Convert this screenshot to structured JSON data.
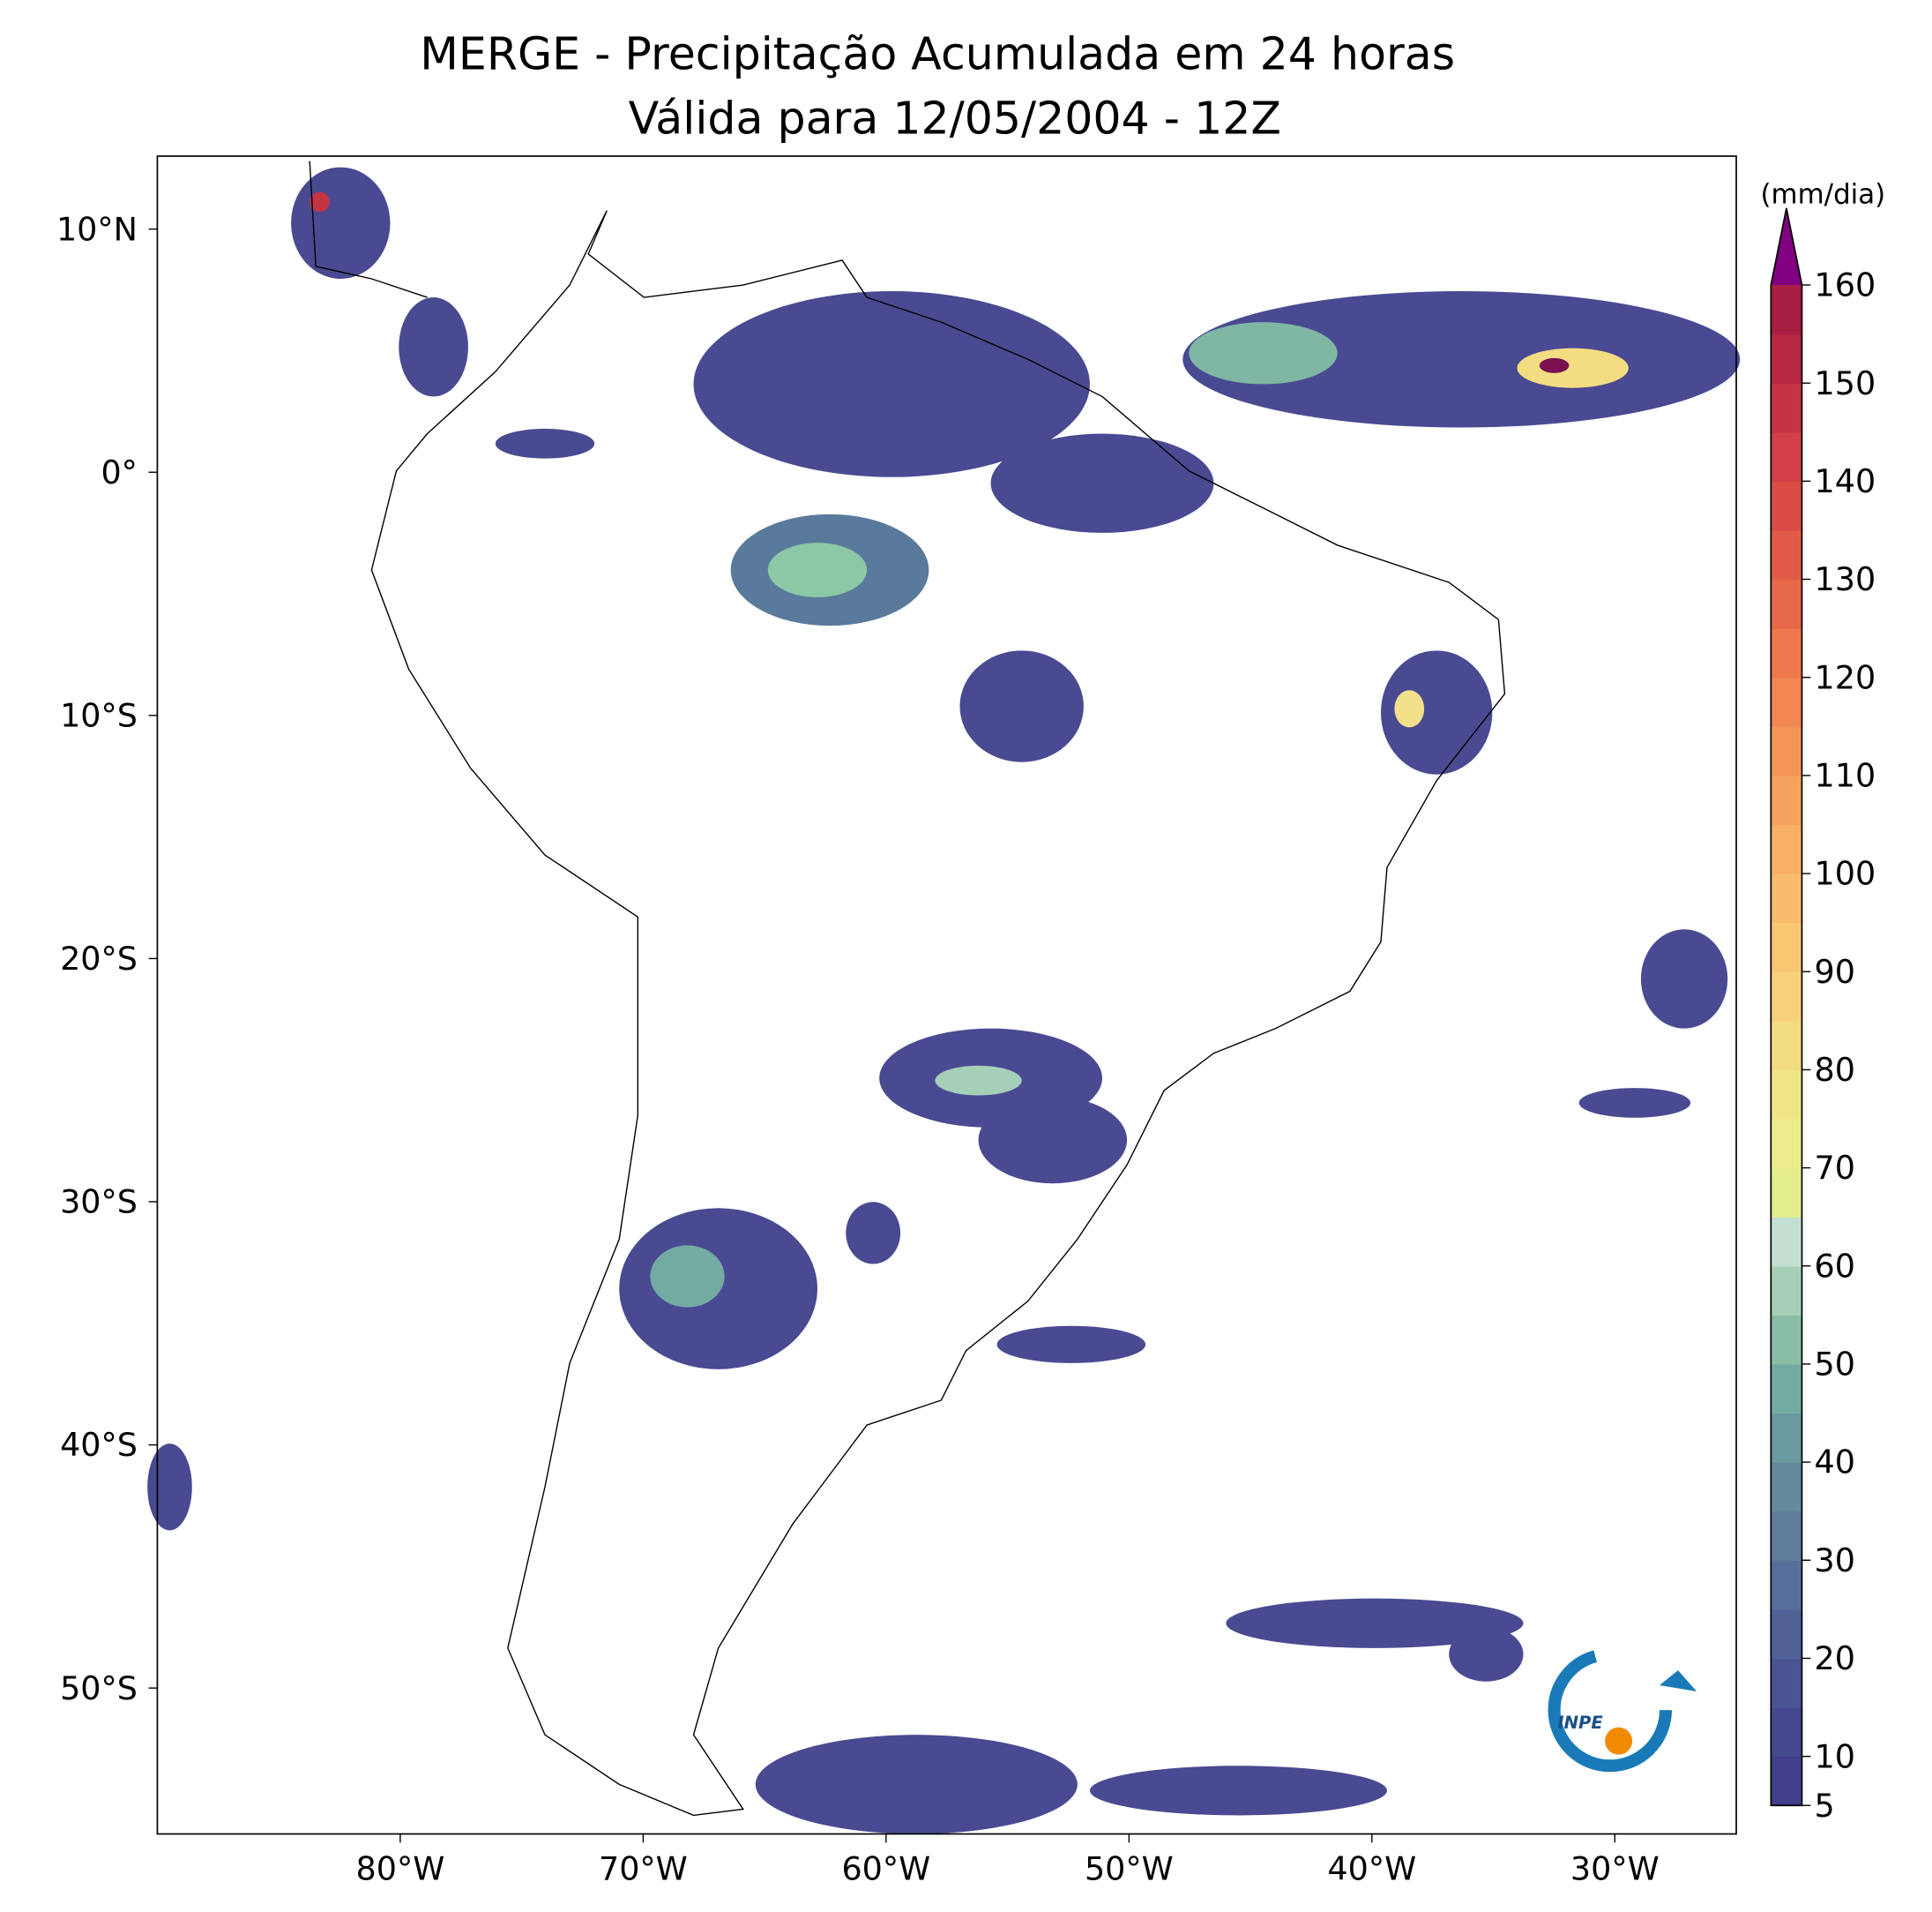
{
  "header": {
    "title": "MERGE - Precipitação Acumulada em 24 horas",
    "subtitle": "Válida para 12/05/2004 - 12Z"
  },
  "map": {
    "lon_lim": [
      -90,
      -25
    ],
    "lat_lim": [
      -56,
      13
    ],
    "lon_ticks": [
      {
        "value": -80,
        "label": "80°W"
      },
      {
        "value": -70,
        "label": "70°W"
      },
      {
        "value": -60,
        "label": "60°W"
      },
      {
        "value": -50,
        "label": "50°W"
      },
      {
        "value": -40,
        "label": "40°W"
      },
      {
        "value": -30,
        "label": "30°W"
      }
    ],
    "lat_ticks": [
      {
        "value": 10,
        "label": "10°N"
      },
      {
        "value": 0,
        "label": "0°"
      },
      {
        "value": -10,
        "label": "10°S"
      },
      {
        "value": -20,
        "label": "20°S"
      },
      {
        "value": -30,
        "label": "30°S"
      },
      {
        "value": -40,
        "label": "40°S"
      },
      {
        "value": -50,
        "label": "50°S"
      }
    ]
  },
  "colorbar": {
    "label": "(mm/dia)",
    "lim": [
      5,
      160
    ],
    "ticks": [
      5,
      10,
      20,
      30,
      40,
      50,
      60,
      70,
      80,
      90,
      100,
      110,
      120,
      130,
      140,
      150,
      160
    ],
    "colors": [
      "#413e8c",
      "#45488f",
      "#4a5494",
      "#506198",
      "#586e9a",
      "#5f7c9c",
      "#65899d",
      "#6a999f",
      "#73aba2",
      "#8abda6",
      "#a6cfb8",
      "#c3e0d3",
      "#e4ee8c",
      "#ebed8c",
      "#f0e585",
      "#f4dc80",
      "#f8d27a",
      "#f9c873",
      "#f9bc6c",
      "#f8b066",
      "#f6a35f",
      "#f49558",
      "#f18752",
      "#ed784d",
      "#e8694a",
      "#e25b48",
      "#da4d47",
      "#d04046",
      "#c43444",
      "#b72843",
      "#a81e42"
    ],
    "extend_color": "#800080"
  },
  "logo": {
    "text": "INPE"
  }
}
